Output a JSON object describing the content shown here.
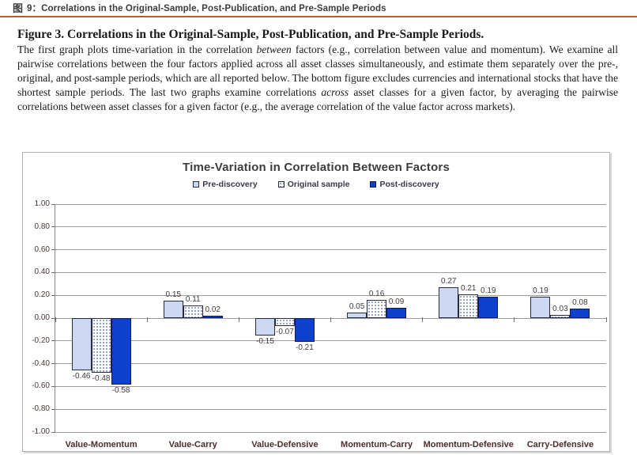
{
  "header": {
    "icon": "图",
    "title": "9：Correlations in the Original-Sample, Post-Publication, and Pre-Sample Periods"
  },
  "figure": {
    "heading": "Figure 3. Correlations in the Original-Sample, Post-Publication, and Pre-Sample Periods.",
    "body": {
      "part1": "The first graph plots time-variation in the correlation ",
      "italic1": "between",
      "part2": " factors (e.g., correlation between value and momentum). We examine all pairwise correlations between the four factors applied across all asset classes simultaneously, and estimate them separately over the pre-, original, and post-sample periods, which are all reported below. The bottom figure excludes currencies and international stocks that have the shortest sample periods. The last two graphs examine correlations ",
      "italic2": "across",
      "part3": " asset classes for a given factor, by averaging the pairwise correlations between asset classes for a given factor (e.g., the average correlation of the value factor across markets)."
    }
  },
  "chart_data": {
    "type": "bar",
    "title": "Time-Variation in Correlation Between Factors",
    "categories": [
      "Value-Momentum",
      "Value-Carry",
      "Value-Defensive",
      "Momentum-Carry",
      "Momentum-Defensive",
      "Carry-Defensive"
    ],
    "series": [
      {
        "name": "Pre-discovery",
        "style": "light",
        "color": "#ccd8f2",
        "values": [
          -0.46,
          0.15,
          -0.15,
          0.05,
          0.27,
          0.19
        ]
      },
      {
        "name": "Original sample",
        "style": "dotted",
        "color": "#ffffff",
        "values": [
          -0.48,
          0.11,
          -0.07,
          0.16,
          0.21,
          0.03
        ]
      },
      {
        "name": "Post-discovery",
        "style": "solid",
        "color": "#0b41cc",
        "values": [
          -0.58,
          0.02,
          -0.21,
          0.09,
          0.19,
          0.08
        ]
      }
    ],
    "ylim": [
      -1.0,
      1.0
    ],
    "ytick_step": 0.2,
    "ytick_format": "0.00",
    "grid": true,
    "legend_position": "top"
  },
  "colors": {
    "accent_rule": "#c05a26",
    "grid_line": "#9d9d9d",
    "axis_text": "#4a3633",
    "category_text": "#4a2e2a"
  }
}
